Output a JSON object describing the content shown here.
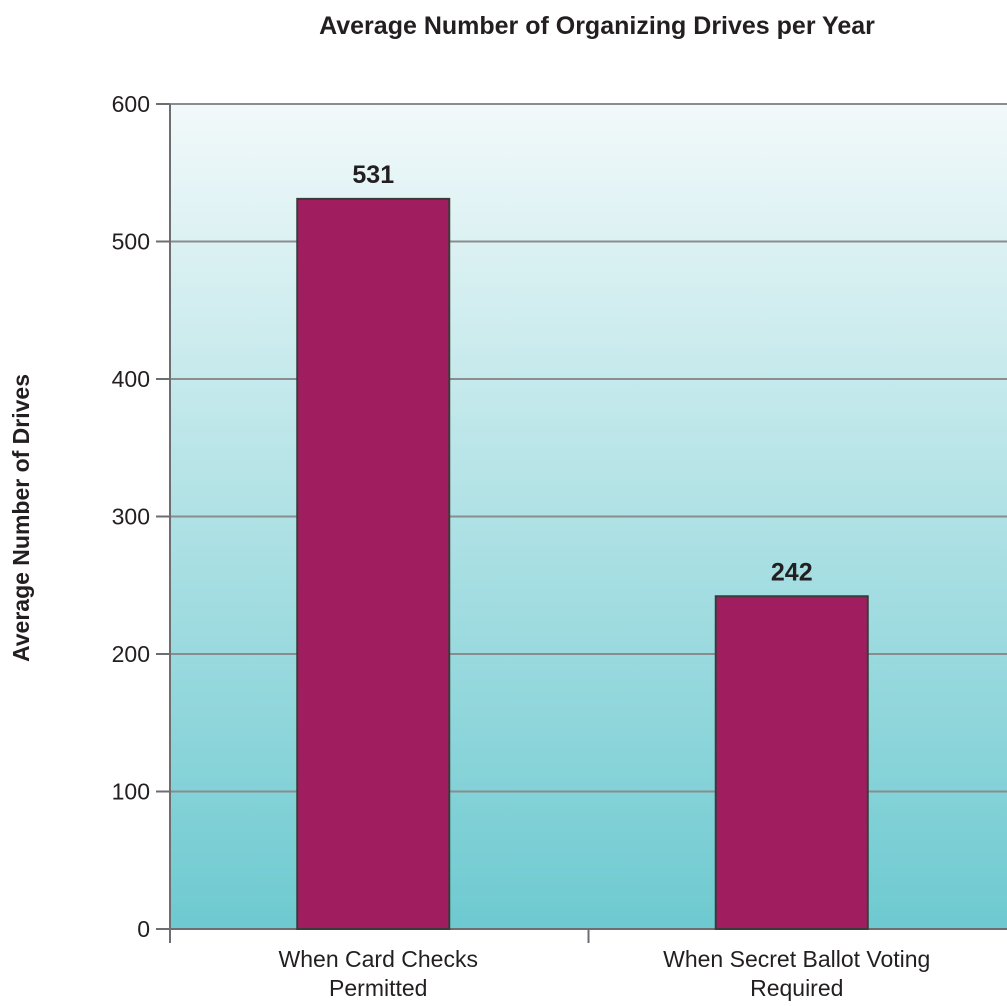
{
  "chart_data": {
    "type": "bar",
    "title": "Average Number of Organizing Drives per Year",
    "xlabel": "",
    "ylabel": "Average Number of Drives",
    "categories": [
      [
        "When Card Checks",
        "Permitted"
      ],
      [
        "When Secret Ballot Voting",
        "Required"
      ]
    ],
    "values": [
      531,
      242
    ],
    "data_labels": [
      "531",
      "242"
    ],
    "ylim": [
      0,
      600
    ],
    "yticks": [
      0,
      100,
      200,
      300,
      400,
      500,
      600
    ],
    "ytick_labels": [
      "0",
      "100",
      "200",
      "300",
      "400",
      "500",
      "600"
    ],
    "grid": "horizontal",
    "legend": "none",
    "colors": {
      "bar": "#a01e5f",
      "bar_stroke": "#3a3a3a",
      "background_top": "#f2f9fa",
      "background_bottom": "#6dcad0",
      "gridline": "#8a8d8f",
      "axis": "#6d6e71"
    }
  }
}
